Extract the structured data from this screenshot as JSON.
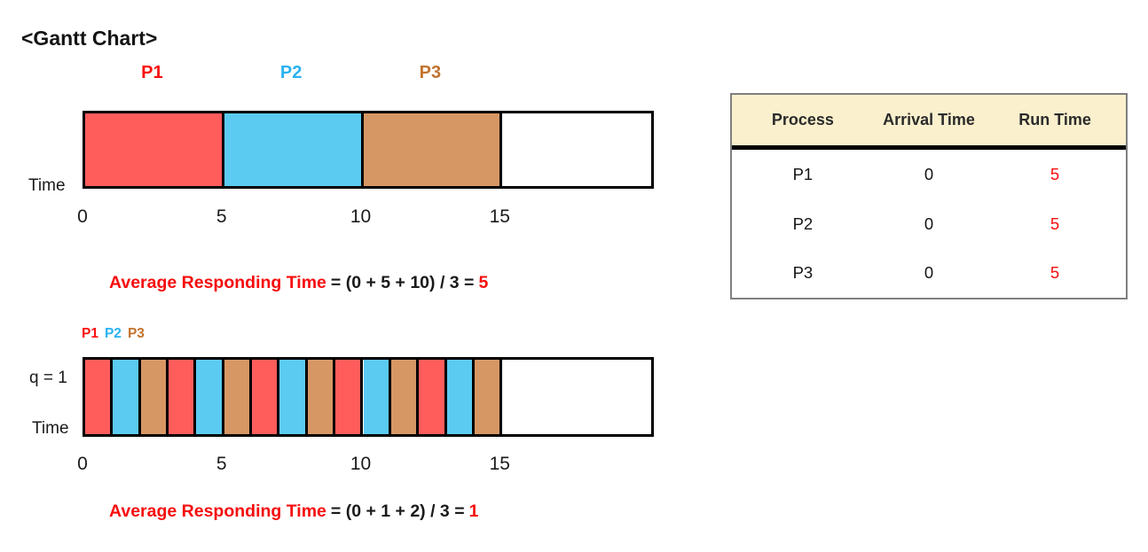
{
  "page_title": "<Gantt Chart>",
  "colors": {
    "p1_fill": "#FF5C5C",
    "p2_fill": "#5CCBF2",
    "p3_fill": "#D79765",
    "p1_text": "#FA0F0F",
    "p2_text": "#29B2F0",
    "p3_text": "#C2732E",
    "accent_red": "#F60D0D",
    "text_dark": "#1A1A1A",
    "bar_border": "#000000",
    "table_header_bg": "#FAF0CD",
    "table_border": "#7F7F7F"
  },
  "chart_data": [
    {
      "type": "gantt",
      "name": "fcfs-schedule",
      "axis_label": "Time",
      "ticks": [
        0,
        5,
        10,
        15
      ],
      "axis_drawn_max": 20.5,
      "labels_above_segments": true,
      "segments": [
        {
          "process": "P1",
          "start": 0,
          "end": 5
        },
        {
          "process": "P2",
          "start": 5,
          "end": 10
        },
        {
          "process": "P3",
          "start": 10,
          "end": 15
        }
      ],
      "formula": {
        "label": "Average Responding Time",
        "equation": "= (0 + 5 + 10) / 3 =",
        "result": "5"
      }
    },
    {
      "type": "gantt",
      "name": "round-robin-schedule",
      "quantum_label": "q = 1",
      "legend": [
        "P1",
        "P2",
        "P3"
      ],
      "axis_label": "Time",
      "ticks": [
        0,
        5,
        10,
        15
      ],
      "axis_drawn_max": 20.5,
      "labels_above_segments": false,
      "segments": [
        {
          "process": "P1",
          "start": 0,
          "end": 1
        },
        {
          "process": "P2",
          "start": 1,
          "end": 2
        },
        {
          "process": "P3",
          "start": 2,
          "end": 3
        },
        {
          "process": "P1",
          "start": 3,
          "end": 4
        },
        {
          "process": "P2",
          "start": 4,
          "end": 5
        },
        {
          "process": "P3",
          "start": 5,
          "end": 6
        },
        {
          "process": "P1",
          "start": 6,
          "end": 7
        },
        {
          "process": "P2",
          "start": 7,
          "end": 8
        },
        {
          "process": "P3",
          "start": 8,
          "end": 9
        },
        {
          "process": "P1",
          "start": 9,
          "end": 10
        },
        {
          "process": "P2",
          "start": 10,
          "end": 11
        },
        {
          "process": "P3",
          "start": 11,
          "end": 12
        },
        {
          "process": "P1",
          "start": 12,
          "end": 13
        },
        {
          "process": "P2",
          "start": 13,
          "end": 14
        },
        {
          "process": "P3",
          "start": 14,
          "end": 15
        }
      ],
      "formula": {
        "label": "Average Responding Time",
        "equation": "= (0 + 1 + 2) / 3 =",
        "result": "1"
      }
    }
  ],
  "table": {
    "headers": [
      "Process",
      "Arrival Time",
      "Run Time"
    ],
    "rows": [
      {
        "process": "P1",
        "arrival_time": "0",
        "run_time": "5"
      },
      {
        "process": "P2",
        "arrival_time": "0",
        "run_time": "5"
      },
      {
        "process": "P3",
        "arrival_time": "0",
        "run_time": "5"
      }
    ]
  }
}
